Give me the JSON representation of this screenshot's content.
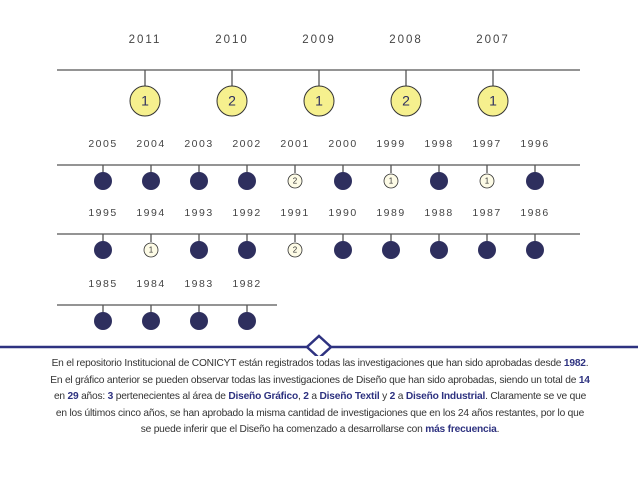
{
  "top": {
    "years": [
      "2011",
      "2010",
      "2009",
      "2008",
      "2007"
    ],
    "counts": [
      1,
      2,
      1,
      2,
      1
    ]
  },
  "rows": [
    {
      "years": [
        "2005",
        "2004",
        "2003",
        "2002",
        "2001",
        "2000",
        "1999",
        "1998",
        "1997",
        "1996"
      ],
      "counts": [
        null,
        null,
        null,
        null,
        2,
        null,
        1,
        null,
        1,
        null
      ]
    },
    {
      "years": [
        "1995",
        "1994",
        "1993",
        "1992",
        "1991",
        "1990",
        "1989",
        "1988",
        "1987",
        "1986"
      ],
      "counts": [
        null,
        1,
        null,
        null,
        2,
        null,
        null,
        null,
        null,
        null
      ]
    },
    {
      "years": [
        "1985",
        "1984",
        "1983",
        "1982"
      ],
      "counts": [
        null,
        null,
        null,
        null
      ]
    }
  ],
  "paragraph": [
    {
      "text": "En el repositorio Institucional de CONICYT están registrados todas las investigaciones que han sido aprobadas desde "
    },
    {
      "text": "1982",
      "bold": true
    },
    {
      "text": ". En el gráfico anterior se pueden observar todas las investigaciones de Diseño que han sido aprobadas, siendo un total de "
    },
    {
      "text": "14",
      "bold": true
    },
    {
      "text": " en "
    },
    {
      "text": "29",
      "bold": true
    },
    {
      "text": " años: "
    },
    {
      "text": "3",
      "bold": true
    },
    {
      "text": " pertenecientes al área de "
    },
    {
      "text": "Diseño Gráfico",
      "bold": true
    },
    {
      "text": ", "
    },
    {
      "text": "2",
      "bold": true
    },
    {
      "text": " a "
    },
    {
      "text": "Diseño Textil",
      "bold": true
    },
    {
      "text": " y "
    },
    {
      "text": "2",
      "bold": true
    },
    {
      "text": " a "
    },
    {
      "text": "Diseño Industrial",
      "bold": true
    },
    {
      "text": ". Claramente se ve que en los últimos cinco años, se han aprobado la misma cantidad de investigaciones que en los 24 años restantes, por lo que se puede inferir que el Diseño ha comenzado a desarrollarse con "
    },
    {
      "text": "más frecuencia",
      "bold": true
    },
    {
      "text": "."
    }
  ]
}
